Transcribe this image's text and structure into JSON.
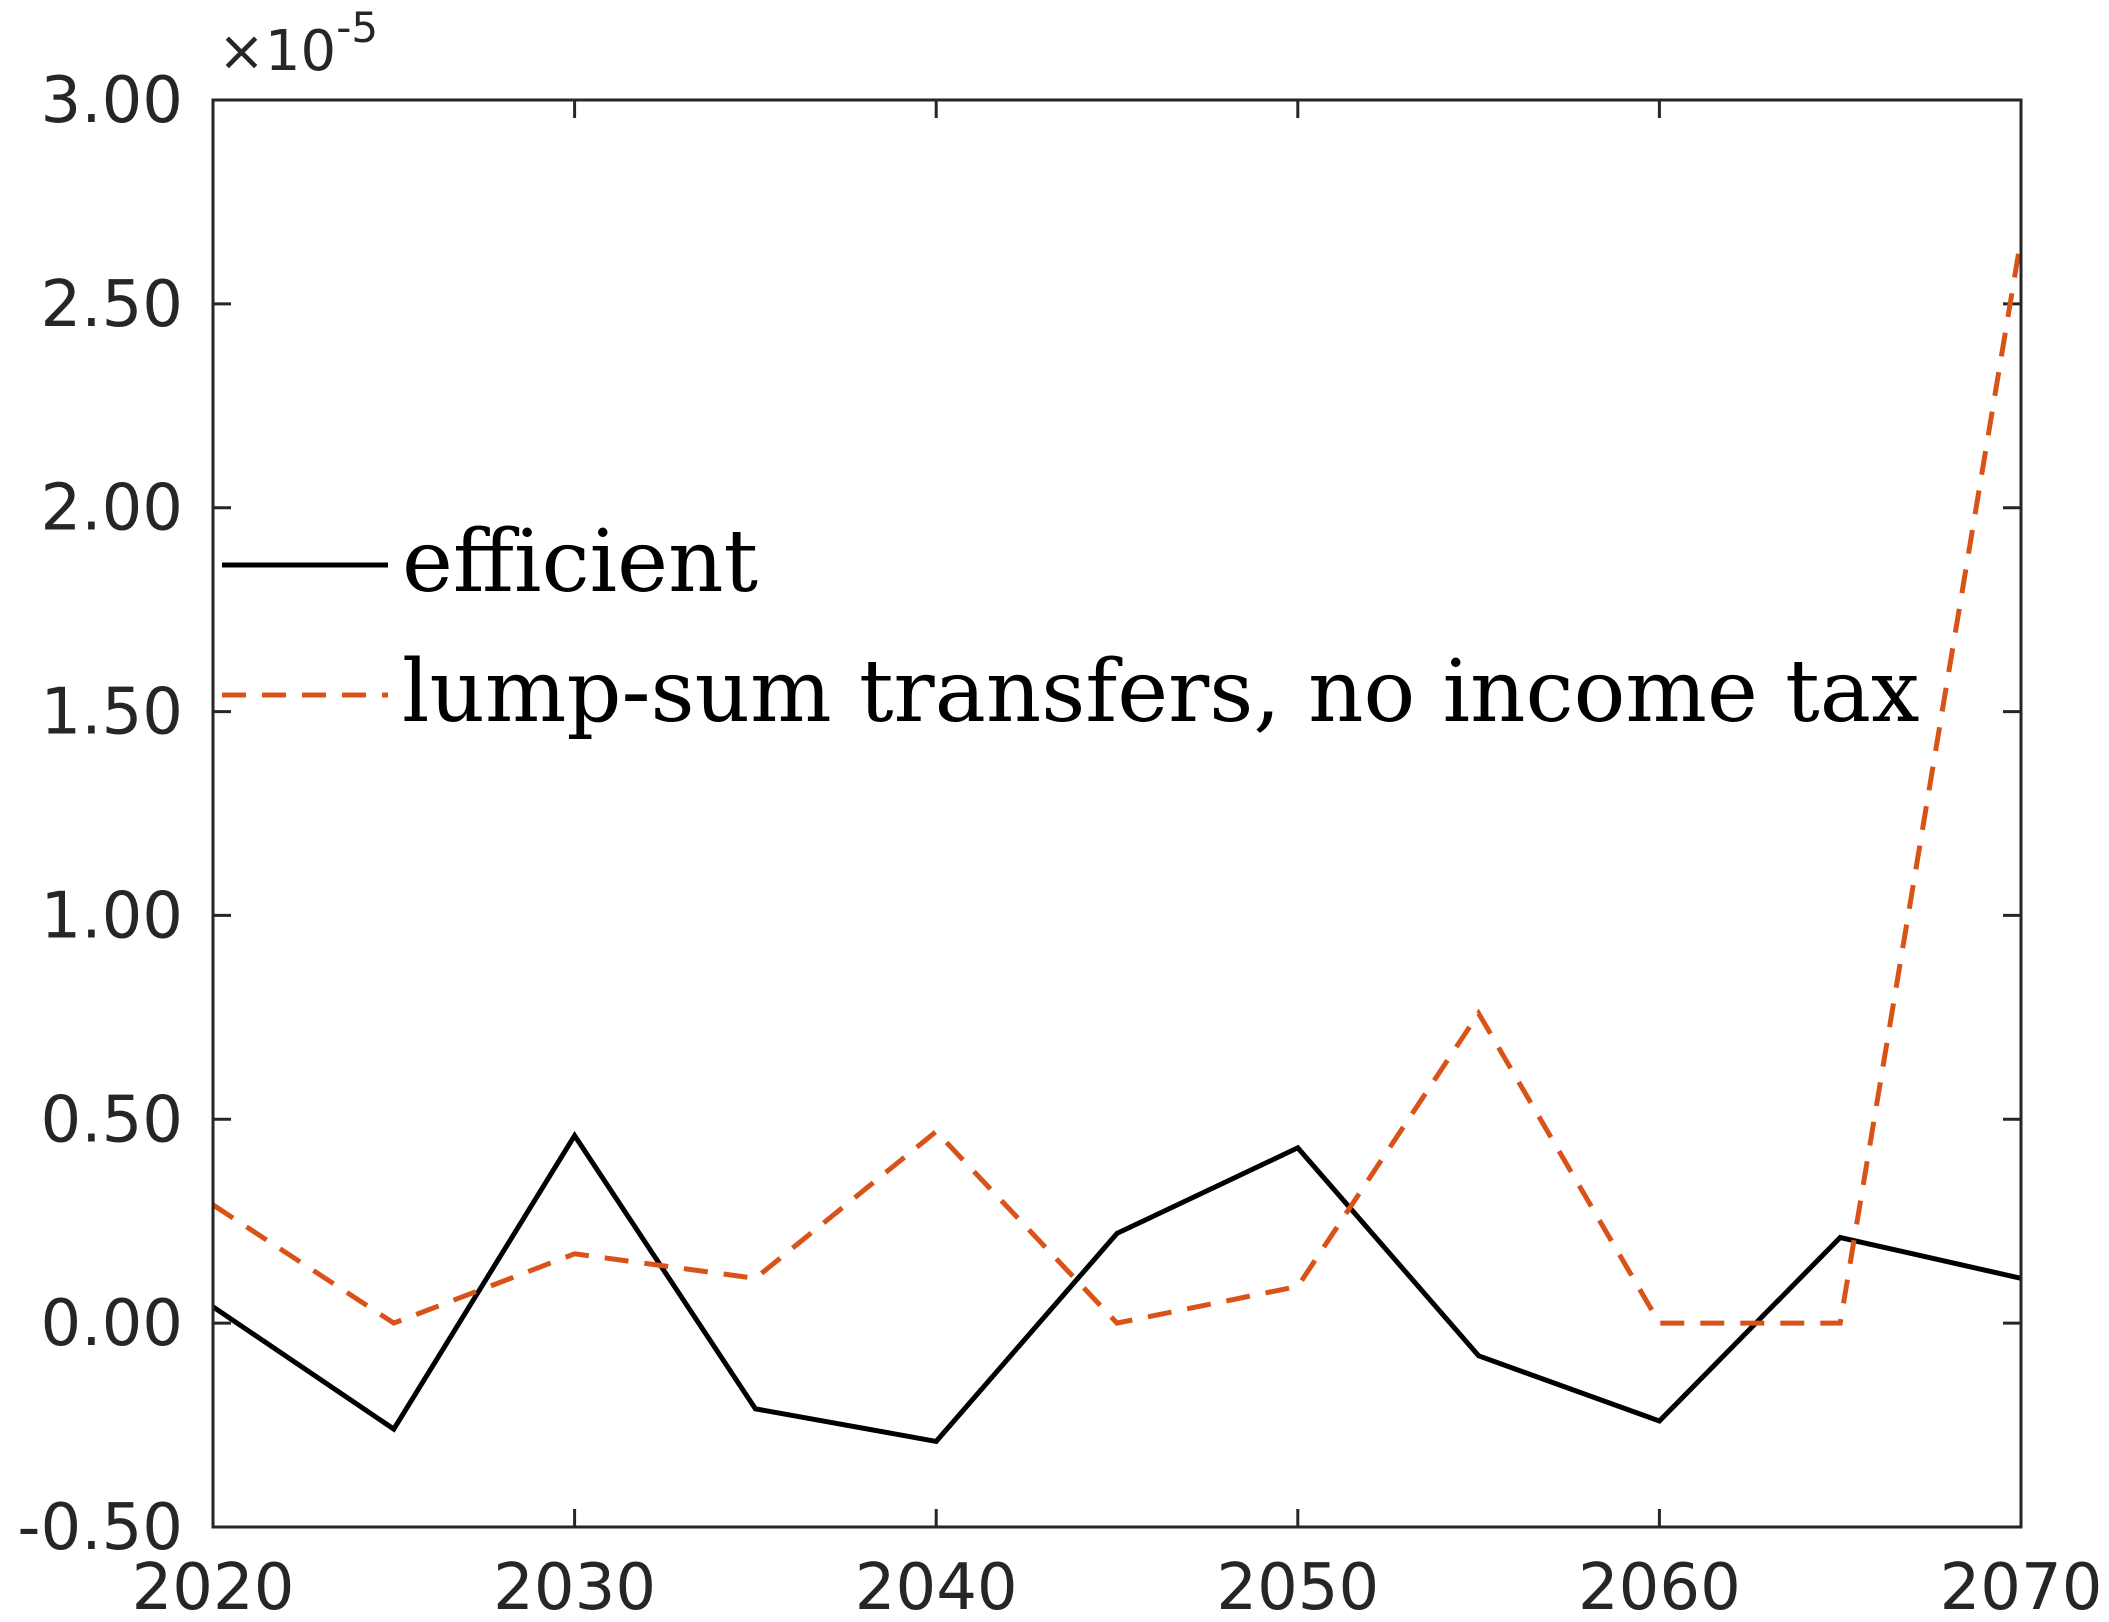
{
  "chart_data": {
    "type": "line",
    "title": "",
    "xlabel": "",
    "ylabel": "",
    "x": [
      2020,
      2025,
      2030,
      2035,
      2040,
      2045,
      2050,
      2055,
      2060,
      2065,
      2070
    ],
    "xlim": [
      2020,
      2070
    ],
    "ylim": [
      -0.5,
      3.0
    ],
    "x_ticks": [
      2020,
      2030,
      2040,
      2050,
      2060,
      2070
    ],
    "y_ticks": [
      -0.5,
      0.0,
      0.5,
      1.0,
      1.5,
      2.0,
      2.5,
      3.0
    ],
    "x_tick_labels": [
      "2020",
      "2030",
      "2040",
      "2050",
      "2060",
      "2070"
    ],
    "y_tick_labels": [
      "-0.50",
      "0.00",
      "0.50",
      "1.00",
      "1.50",
      "2.00",
      "2.50",
      "3.00"
    ],
    "y_multiplier": {
      "base": "×10",
      "exponent": "-5"
    },
    "grid": false,
    "legend_position": "center-left",
    "series": [
      {
        "name": "efficient",
        "color": "#000000",
        "style": "solid",
        "values": [
          0.04,
          -0.26,
          0.46,
          -0.21,
          -0.29,
          0.22,
          0.43,
          -0.08,
          -0.24,
          0.21,
          0.11
        ]
      },
      {
        "name": "lump-sum transfers, no income tax",
        "color": "#D95319",
        "style": "dashed",
        "values": [
          0.29,
          0.0,
          0.17,
          0.11,
          0.47,
          0.0,
          0.09,
          0.76,
          0.0,
          0.0,
          2.66
        ]
      }
    ]
  }
}
